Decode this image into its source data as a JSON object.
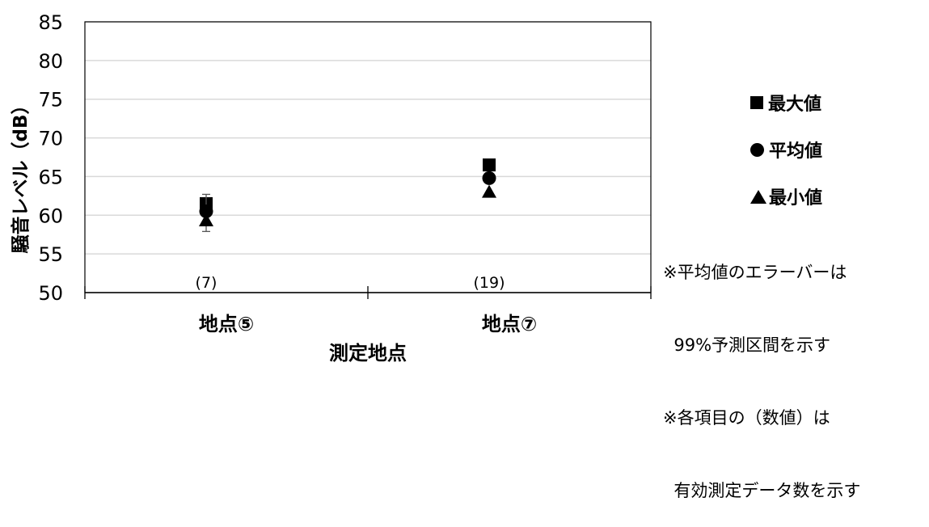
{
  "chart_data": {
    "type": "scatter",
    "title": "",
    "xlabel": "測定地点",
    "ylabel": "騒音レベル（dB）",
    "ylim": [
      50,
      85
    ],
    "yticks": [
      50,
      55,
      60,
      65,
      70,
      75,
      80,
      85
    ],
    "grid": true,
    "categories": [
      "地点⑤",
      "地点⑦"
    ],
    "counts": [
      "(7)",
      "(19)"
    ],
    "series": [
      {
        "name": "最大値",
        "marker": "square",
        "values": [
          61.5,
          66.5
        ]
      },
      {
        "name": "平均値",
        "marker": "circle",
        "values": [
          60.5,
          64.8
        ],
        "error_low": [
          57.9,
          64.8
        ],
        "error_high": [
          62.7,
          64.8
        ]
      },
      {
        "name": "最小値",
        "marker": "triangle",
        "values": [
          59.3,
          63.0
        ]
      }
    ]
  },
  "notes": {
    "line1": "※平均値のエラーバーは",
    "line2": "  99%予測区間を示す",
    "line3": "※各項目の（数値）は",
    "line4": "  有効測定データ数を示す"
  },
  "colors": {
    "marker": "#000000",
    "grid": "#d9d9d9",
    "axis": "#000000"
  }
}
